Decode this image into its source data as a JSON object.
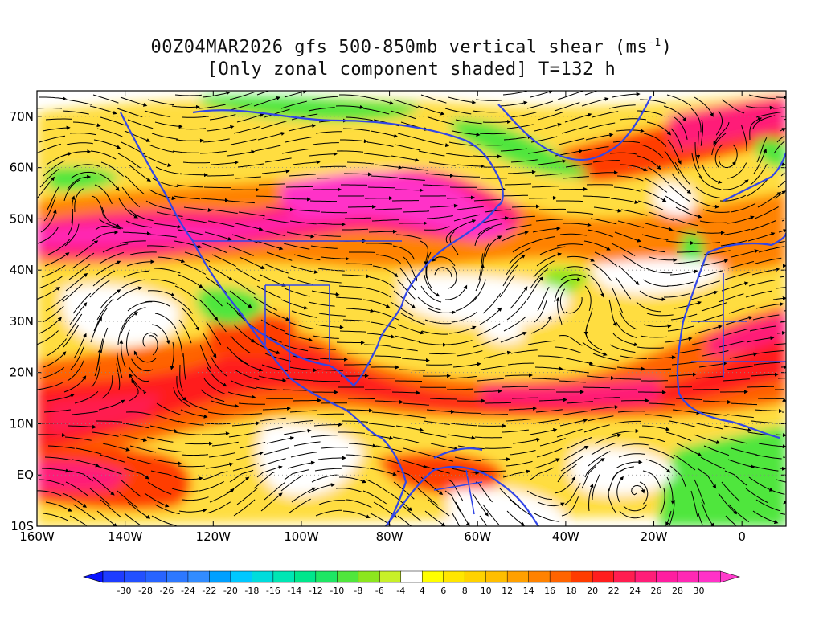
{
  "title": {
    "line1": "00Z04MAR2026 gfs 500-850mb vertical shear (ms",
    "line1_sup": "-1",
    "line1_end": ")",
    "line2": "[Only zonal component shaded] T=132 h"
  },
  "axes": {
    "lat_labels": [
      "70N",
      "60N",
      "50N",
      "40N",
      "30N",
      "20N",
      "10N",
      "EQ",
      "10S"
    ],
    "lat_values": [
      70,
      60,
      50,
      40,
      30,
      20,
      10,
      0,
      -10
    ],
    "lon_labels": [
      "160W",
      "140W",
      "120W",
      "100W",
      "80W",
      "60W",
      "40W",
      "20W",
      "0"
    ],
    "lon_values": [
      -160,
      -140,
      -120,
      -100,
      -80,
      -60,
      -40,
      -20,
      0
    ],
    "lon_range": [
      -160,
      10
    ],
    "lat_range": [
      -10,
      75
    ]
  },
  "colorbar": {
    "labels": [
      "-30",
      "-28",
      "-26",
      "-24",
      "-22",
      "-20",
      "-18",
      "-16",
      "-14",
      "-12",
      "-10",
      "-8",
      "-6",
      "-4",
      "4",
      "6",
      "8",
      "10",
      "12",
      "14",
      "16",
      "18",
      "20",
      "22",
      "24",
      "26",
      "28",
      "30"
    ],
    "colors": [
      "#1e3cff",
      "#2350ff",
      "#2864ff",
      "#2d78ff",
      "#328cff",
      "#00a0ff",
      "#00c8ff",
      "#00dcdc",
      "#00e6b4",
      "#00e68c",
      "#1ee664",
      "#50e63c",
      "#8ce61e",
      "#c8f028",
      "#ffffff",
      "#ffff00",
      "#ffe600",
      "#ffd200",
      "#ffbe00",
      "#ffa000",
      "#ff8200",
      "#ff6400",
      "#ff3c00",
      "#ff1e1e",
      "#ff1e50",
      "#ff1e78",
      "#ff1ea0",
      "#ff28b4",
      "#ff32c8"
    ],
    "end_low": "#0a14ff",
    "end_high": "#ff3ccc"
  },
  "map_style": {
    "coast_color": "#3246e6",
    "stream_color": "#000000"
  }
}
